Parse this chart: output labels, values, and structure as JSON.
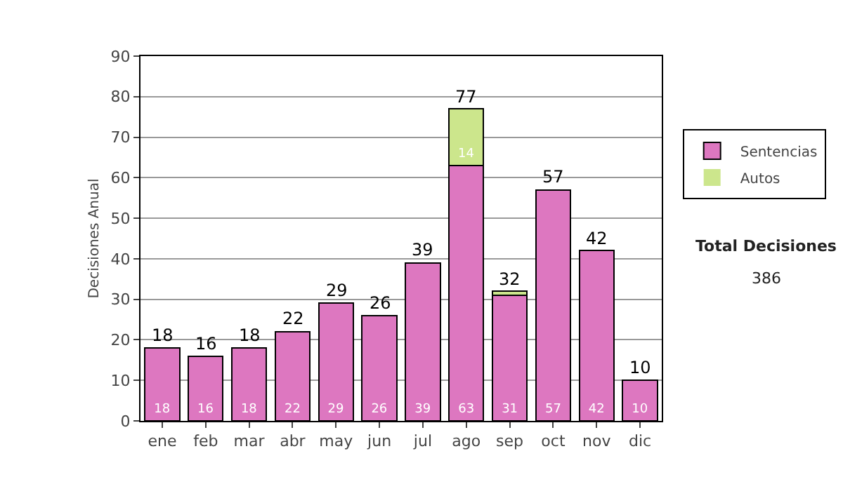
{
  "chart_data": {
    "type": "bar",
    "stacked": true,
    "ylabel": "Decisiones Anual",
    "categories": [
      "ene",
      "feb",
      "mar",
      "abr",
      "may",
      "jun",
      "jul",
      "ago",
      "sep",
      "oct",
      "nov",
      "dic"
    ],
    "series": [
      {
        "name": "Sentencias",
        "color": "#dd77c0",
        "values": [
          18,
          16,
          18,
          22,
          29,
          26,
          39,
          63,
          31,
          57,
          42,
          10
        ],
        "value_labels": [
          "18",
          "16",
          "18",
          "22",
          "29",
          "26",
          "39",
          "63",
          "31",
          "57",
          "42",
          "10"
        ]
      },
      {
        "name": "Autos",
        "color": "#cce68c",
        "values": [
          0,
          0,
          0,
          0,
          0,
          0,
          0,
          14,
          1,
          0,
          0,
          0
        ],
        "value_labels": [
          null,
          null,
          null,
          null,
          null,
          null,
          null,
          "14",
          null,
          null,
          null,
          null
        ]
      }
    ],
    "totals": [
      "18",
      "16",
      "18",
      "22",
      "29",
      "26",
      "39",
      "77",
      "32",
      "57",
      "42",
      "10"
    ],
    "ylim": [
      0,
      90
    ],
    "yticks": [
      0,
      10,
      20,
      30,
      40,
      50,
      60,
      70,
      80,
      90
    ],
    "grid": "y",
    "legend": "right",
    "annotations": [
      "Total Decisiones",
      "386"
    ]
  }
}
